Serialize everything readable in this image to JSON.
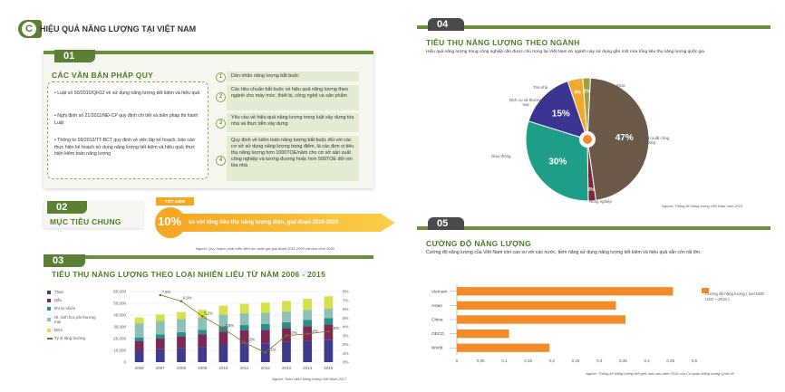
{
  "main_title": {
    "letter": "C",
    "text": "HIỆU QUẢ NĂNG LƯỢNG TẠI VIỆT NAM"
  },
  "s01": {
    "num": "01",
    "title": "CÁC VĂN BẢN PHÁP QUY",
    "bullets": [
      "Luật số 50/2010/QH12 về sử dụng năng lượng tiết kiệm và hiệu quả",
      "Nghị định số 21/2011/NĐ-CP quy định chi tiết và biện pháp thi hành Luật",
      "Thông tư 09/2012/TT-BCT quy định về việc lập kế hoạch, báo cáo thực hiện kế hoạch sử dụng năng lượng tiết kiệm và hiệu quả; thực hiện kiểm toán năng lượng"
    ],
    "items": [
      {
        "n": "1",
        "text": "Dán nhãn năng lượng bắt buộc"
      },
      {
        "n": "2",
        "text": "Các tiêu chuẩn bắt buộc về hiệu quả năng lượng theo ngành cho máy móc, thiết bị, công nghệ và sản phẩm"
      },
      {
        "n": "3",
        "text": "Yêu cầu về hiệu quả năng lượng trong luật xây dựng tòa nhà và thực tiễn xây dựng"
      },
      {
        "n": "4",
        "text": "Quy định về kiểm toán năng lượng bắt buộc đối với các cơ sở sử dụng năng lượng trọng điểm, là các đơn vị tiêu thụ năng lượng hơn 1000TOE/năm cho cơ sở sản xuất công nghiệp và tương đương hoặc hơn 500TOE đối với tòa nhà"
      }
    ]
  },
  "s02": {
    "num": "02",
    "title": "MỤC TIÊU CHUNG",
    "badge": "TIẾT KIỆM",
    "percent": "10%",
    "text": "so với tổng tiêu thụ năng lượng điện, giai đoạn 2016-2020",
    "source": "Nguồn: Quy hoạch phát triển điện lực quốc gia giai đoạn 2011-2020 với tầm nhìn 2030"
  },
  "s03": {
    "num": "03",
    "title": "TIÊU THỤ NĂNG LƯỢNG THEO LOẠI NHIÊN LIỆU TỪ NĂM 2006 - 2015",
    "source": "Nguồn: Toàn cảnh Năng lượng Việt Nam 2017",
    "legend": [
      "Than",
      "Dầu",
      "khí tự nhiên",
      "Nl. sinh học phi thương mại",
      "Điện",
      "Tỷ lệ tăng trưởng"
    ],
    "colors": [
      "#3f3a8c",
      "#7a2a55",
      "#2a8f8a",
      "#8fc0b8",
      "#d6e04a",
      "#8a6a1a"
    ]
  },
  "s04": {
    "num": "04",
    "title": "TIÊU THỤ NĂNG LƯỢNG THEO NGÀNH",
    "desc": "Hiệu quả năng lượng trong công nghiệp cần được chú trọng tại Việt Nam do ngành này sử dụng gần một nửa tổng tiêu thụ năng lượng quốc gia.",
    "source": "Nguồn: Thống kê Năng lượng Việt Nam năm 2013",
    "labels": {
      "toa_nha": "Tòa nhà",
      "khac": "Khác",
      "dich_vu": "Dịch vụ và thương mại",
      "san_xuat": "Sản xuất công nghiệp",
      "giao_thong": "Giao thông",
      "nong_nghiep": "Nông nghiệp"
    }
  },
  "s05": {
    "num": "05",
    "title": "CƯỜNG ĐỘ NĂNG LƯỢNG",
    "desc": "Cường độ năng lượng của Việt Nam còn cao so với các nước, tiềm năng sử dụng năng lượng tiết kiệm và hiệu quả vẫn còn rất lớn.",
    "legend": "Cường độ năng lượng ( toe/1000 USD – 2010 )",
    "source": "Nguồn: Thống kê Năng lượng thế giới, báo cáo năm 2016 của Cơ quan Năng lượng Quốc tế"
  },
  "chart_data": [
    {
      "type": "bar",
      "title": "TIÊU THỤ NĂNG LƯỢNG THEO LOẠI NHIÊN LIỆU TỪ NĂM 2006 - 2015",
      "categories": [
        "2006",
        "2007",
        "2008",
        "2009",
        "2010",
        "2011",
        "2012",
        "2013",
        "2014",
        "2015"
      ],
      "stacked": true,
      "series": [
        {
          "name": "Than",
          "values": [
            10000,
            11000,
            12000,
            13000,
            15000,
            16000,
            16000,
            17000,
            18000,
            19000
          ]
        },
        {
          "name": "Dầu",
          "values": [
            8000,
            9000,
            10000,
            10500,
            11000,
            11000,
            11500,
            12000,
            12500,
            13000
          ]
        },
        {
          "name": "khí tự nhiên",
          "values": [
            3000,
            3500,
            3500,
            4000,
            4500,
            4500,
            5000,
            5000,
            5500,
            5500
          ]
        },
        {
          "name": "Nl. sinh học phi thương mại",
          "values": [
            12000,
            11500,
            11000,
            10500,
            10000,
            10000,
            9500,
            9000,
            8500,
            8000
          ]
        },
        {
          "name": "Điện",
          "values": [
            5000,
            5500,
            6000,
            6500,
            7500,
            8000,
            8500,
            9000,
            9500,
            10500
          ]
        }
      ],
      "line": {
        "name": "Tỷ lệ tăng trưởng",
        "values": [
          null,
          7.6,
          6.9,
          5.2,
          3.8,
          2.2,
          1.1,
          3,
          3.2,
          3.5
        ],
        "labels": [
          "",
          "7,6%",
          "6,9%",
          "5,2%",
          "3,8%",
          "2,2%",
          "1,1%",
          "3,0%",
          "3,2%",
          "3,5%"
        ]
      },
      "yticks": [
        "0",
        "10,000",
        "20,000",
        "30,000",
        "40,000",
        "50,000",
        "60,000"
      ],
      "y2ticks": [
        "0%",
        "1%",
        "2%",
        "3%",
        "4%",
        "5%",
        "6%",
        "7%",
        "8%"
      ],
      "ylim": [
        0,
        60000
      ],
      "y2lim": [
        0,
        8
      ]
    },
    {
      "type": "pie",
      "title": "TIÊU THỤ NĂNG LƯỢNG THEO NGÀNH",
      "slices": [
        {
          "name": "Sản xuất công nghiệp",
          "value": 47,
          "label": "47%",
          "color": "#6b5a4a"
        },
        {
          "name": "Nông nghiệp",
          "value": 2,
          "label": "2%",
          "color": "#7a2a3a"
        },
        {
          "name": "Giao thông",
          "value": 30,
          "label": "30%",
          "color": "#1e9e86"
        },
        {
          "name": "Dịch vụ và thương mại",
          "value": 15,
          "label": "15%",
          "color": "#3b3591"
        },
        {
          "name": "Tòa nhà",
          "value": 4,
          "label": "4%",
          "color": "#f0a92c"
        },
        {
          "name": "Khác",
          "value": 2,
          "label": "2%",
          "color": "#a0a040"
        }
      ]
    },
    {
      "type": "bar",
      "title": "CƯỜNG ĐỘ NĂNG LƯỢNG",
      "orientation": "horizontal",
      "categories": [
        "Vietnam",
        "Asian",
        "China",
        "OECD",
        "World"
      ],
      "values": [
        0.455,
        0.335,
        0.355,
        0.11,
        0.195
      ],
      "xticks": [
        "0",
        "0,05",
        "0,1",
        "0,15",
        "0,2",
        "0,25",
        "0,3",
        "0,35",
        "0,4",
        "0,45",
        "0,5"
      ],
      "xlim": [
        0,
        0.5
      ]
    }
  ]
}
